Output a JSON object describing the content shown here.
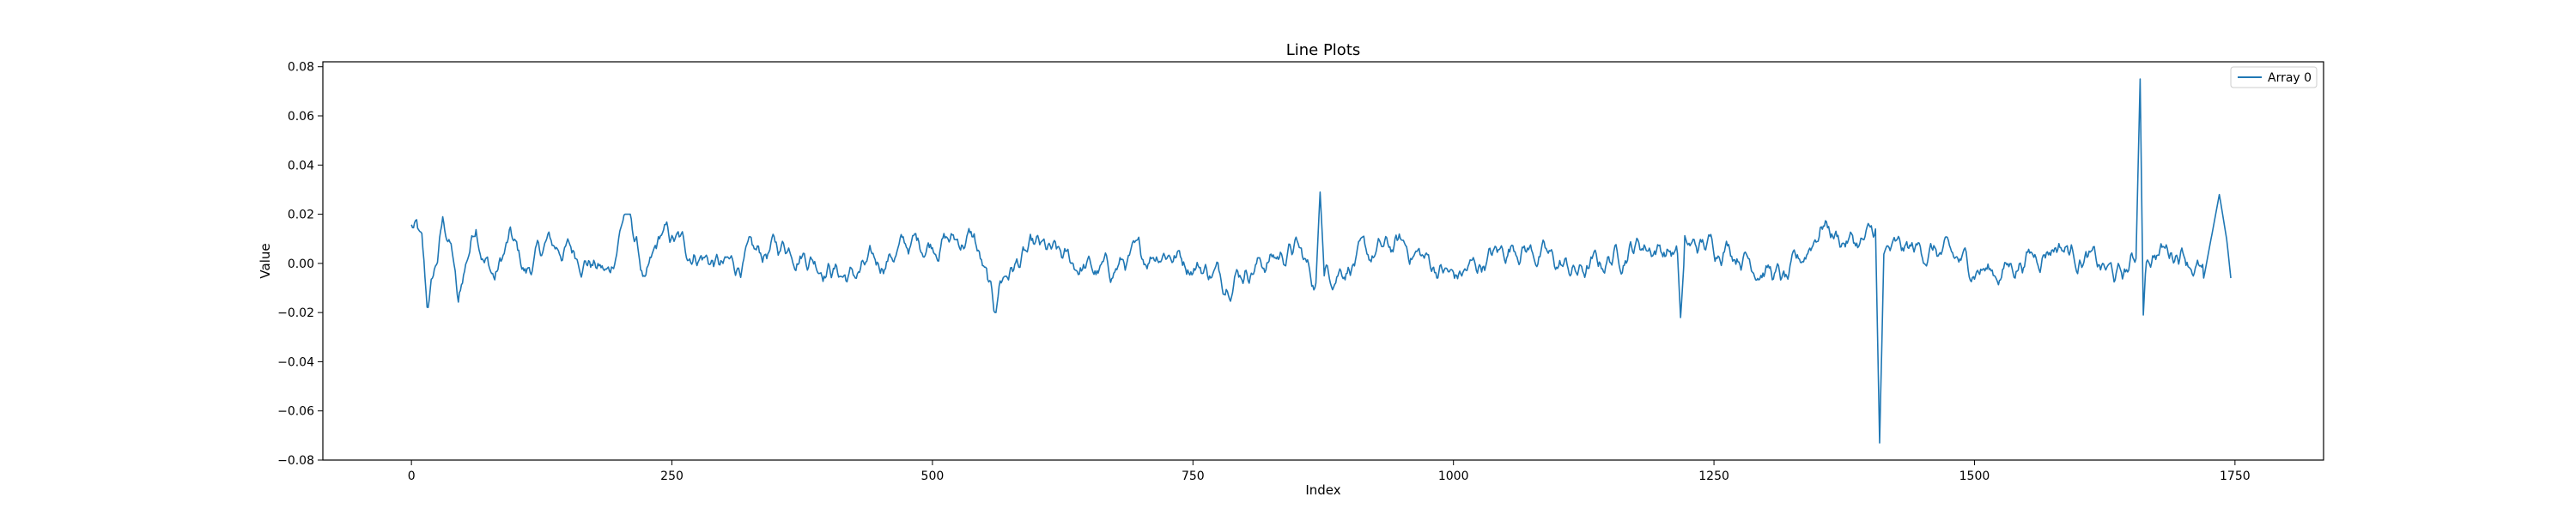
{
  "chart_data": {
    "type": "line",
    "title": "Line Plots",
    "xlabel": "Index",
    "ylabel": "Value",
    "xlim": [
      -85,
      1835
    ],
    "ylim": [
      -0.08,
      0.082
    ],
    "xticks": [
      0,
      250,
      500,
      750,
      1000,
      1250,
      1500,
      1750
    ],
    "yticks": [
      -0.08,
      -0.06,
      -0.04,
      -0.02,
      0.0,
      0.02,
      0.04,
      0.06,
      0.08
    ],
    "ytick_labels": [
      "−0.08",
      "−0.06",
      "−0.04",
      "−0.02",
      "0.00",
      "0.02",
      "0.04",
      "0.06",
      "0.08"
    ],
    "grid": false,
    "legend": {
      "placement": "top-right"
    },
    "series": [
      {
        "name": "Array 0",
        "color": "#1f77b4",
        "n_points": 1747,
        "key_points": [
          [
            0,
            0.015
          ],
          [
            5,
            0.013
          ],
          [
            10,
            0.006
          ],
          [
            15,
            -0.018
          ],
          [
            20,
            -0.008
          ],
          [
            25,
            0.002
          ],
          [
            30,
            0.016
          ],
          [
            35,
            0.012
          ],
          [
            40,
            0.002
          ],
          [
            45,
            -0.019
          ],
          [
            50,
            -0.004
          ],
          [
            62,
            0.018
          ],
          [
            70,
            0.002
          ],
          [
            80,
            -0.006
          ],
          [
            95,
            0.01
          ],
          [
            110,
            -0.004
          ],
          [
            130,
            0.008
          ],
          [
            160,
            0.004
          ],
          [
            190,
            -0.005
          ],
          [
            205,
            0.022
          ],
          [
            215,
            0.01
          ],
          [
            225,
            -0.01
          ],
          [
            240,
            0.012
          ],
          [
            300,
            -0.002
          ],
          [
            360,
            0.008
          ],
          [
            420,
            -0.006
          ],
          [
            480,
            0.008
          ],
          [
            540,
            0.01
          ],
          [
            560,
            -0.02
          ],
          [
            565,
            -0.006
          ],
          [
            600,
            0.006
          ],
          [
            660,
            -0.004
          ],
          [
            720,
            0.006
          ],
          [
            780,
            -0.006
          ],
          [
            850,
            0.006
          ],
          [
            868,
            -0.008
          ],
          [
            872,
            0.029
          ],
          [
            876,
            -0.004
          ],
          [
            950,
            0.008
          ],
          [
            1000,
            -0.006
          ],
          [
            1060,
            0.008
          ],
          [
            1120,
            -0.004
          ],
          [
            1180,
            0.008
          ],
          [
            1215,
            0.004
          ],
          [
            1218,
            -0.022
          ],
          [
            1222,
            0.006
          ],
          [
            1260,
            0.008
          ],
          [
            1320,
            -0.008
          ],
          [
            1355,
            0.017
          ],
          [
            1370,
            0.01
          ],
          [
            1395,
            0.008
          ],
          [
            1405,
            0.014
          ],
          [
            1409,
            -0.073
          ],
          [
            1413,
            0.004
          ],
          [
            1450,
            0.006
          ],
          [
            1520,
            -0.004
          ],
          [
            1580,
            0.008
          ],
          [
            1640,
            -0.006
          ],
          [
            1655,
            0.002
          ],
          [
            1659,
            0.075
          ],
          [
            1662,
            -0.021
          ],
          [
            1665,
            0.004
          ],
          [
            1700,
            0.006
          ],
          [
            1720,
            -0.006
          ],
          [
            1735,
            0.028
          ],
          [
            1742,
            0.01
          ],
          [
            1746,
            -0.006
          ]
        ]
      }
    ]
  }
}
